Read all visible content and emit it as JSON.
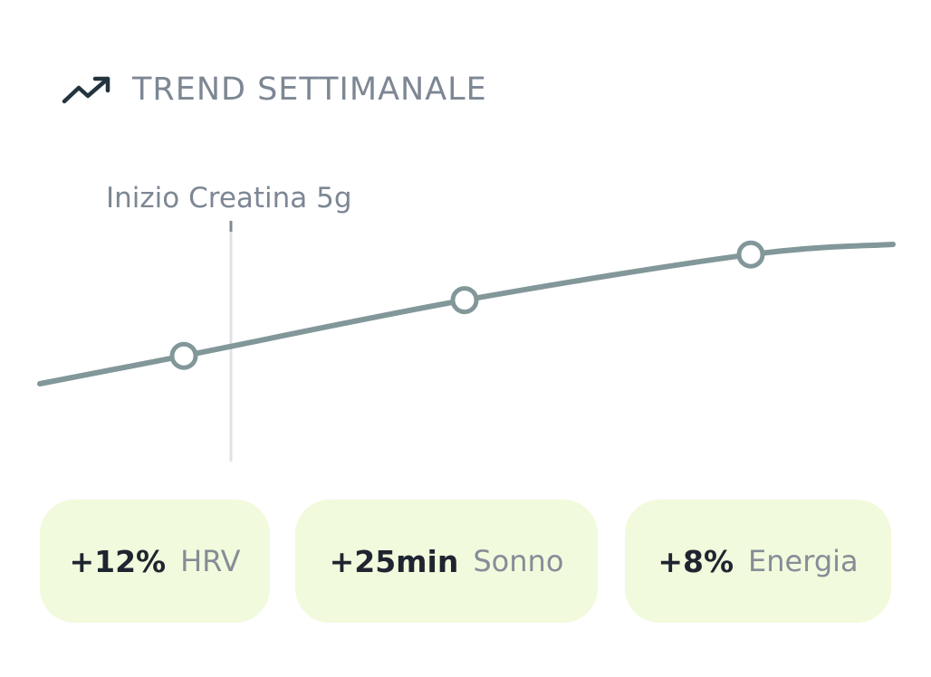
{
  "header": {
    "icon": "trending-up-icon",
    "title": "TREND SETTIMANALE"
  },
  "chart_data": {
    "type": "line",
    "series": [
      {
        "values": [
          0.2,
          0.31,
          0.53,
          0.71,
          0.75
        ]
      }
    ],
    "point_markers": [
      1,
      2,
      3
    ],
    "annotations": [
      {
        "text": "Inizio Creatina 5g"
      }
    ],
    "line_color": "#829799",
    "marker_fill": "#ffffff",
    "grid": false,
    "axes_visible": false
  },
  "stats": [
    {
      "value": "+12%",
      "label": "HRV"
    },
    {
      "value": "+25min",
      "label": "Sonno"
    },
    {
      "value": "+8%",
      "label": "Energia"
    }
  ],
  "colors": {
    "line": "#829799",
    "card_background": "#f1fadc",
    "title_text": "#7d8794",
    "value_text": "#1f2530"
  }
}
